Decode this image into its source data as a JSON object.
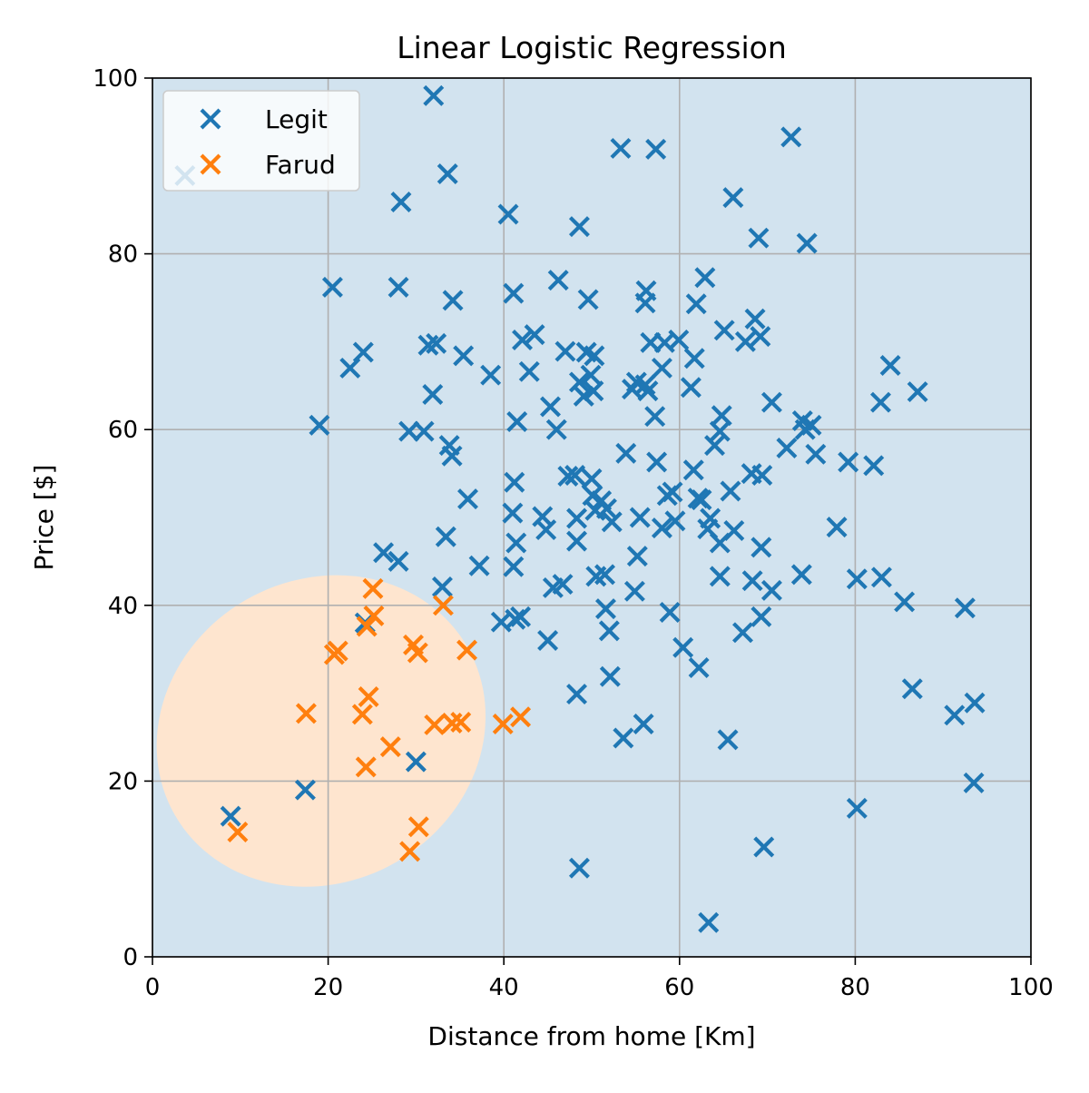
{
  "chart_data": {
    "type": "scatter",
    "title": "Linear Logistic Regression",
    "xlabel": "Distance from home [Km]",
    "ylabel": "Price [$]",
    "xlim": [
      0,
      100
    ],
    "ylim": [
      0,
      100
    ],
    "xticks": [
      "0",
      "20",
      "40",
      "60",
      "80",
      "100"
    ],
    "yticks": [
      "0",
      "20",
      "40",
      "60",
      "80",
      "100"
    ],
    "grid": true,
    "legend_position": "top-left",
    "marker": "x",
    "background_region_color": "#d2e3ef",
    "decision_region": {
      "label": "Farud",
      "shape": "ellipse",
      "color": "#fee5cf",
      "center": [
        19.2,
        25.7
      ],
      "radius_x": 19.2,
      "radius_y": 17.2,
      "rotation_deg": -30
    },
    "series": [
      {
        "name": "Legit",
        "color": "#1f77b4",
        "points": [
          [
            3.7,
            88.9
          ],
          [
            32,
            98
          ],
          [
            8.9,
            16
          ],
          [
            17.4,
            19
          ],
          [
            30,
            22.2
          ],
          [
            24.2,
            38
          ],
          [
            26.3,
            46
          ],
          [
            28,
            45
          ],
          [
            19,
            60.5
          ],
          [
            20.5,
            76.2
          ],
          [
            22.5,
            67
          ],
          [
            24,
            68.8
          ],
          [
            28,
            76.2
          ],
          [
            28.3,
            85.9
          ],
          [
            29.2,
            59.8
          ],
          [
            30.9,
            59.8
          ],
          [
            31.4,
            69.6
          ],
          [
            32.3,
            69.8
          ],
          [
            31.9,
            64
          ],
          [
            33.6,
            89.1
          ],
          [
            34.2,
            74.7
          ],
          [
            33.8,
            58.2
          ],
          [
            34.1,
            57
          ],
          [
            35.4,
            68.4
          ],
          [
            33.4,
            47.8
          ],
          [
            33,
            42.1
          ],
          [
            35.9,
            52.1
          ],
          [
            37.2,
            44.5
          ],
          [
            38.5,
            66.2
          ],
          [
            39.7,
            38.1
          ],
          [
            40.5,
            84.5
          ],
          [
            41.1,
            75.5
          ],
          [
            41.5,
            60.9
          ],
          [
            41.2,
            54
          ],
          [
            41,
            50.5
          ],
          [
            41.4,
            47.1
          ],
          [
            41.1,
            44.4
          ],
          [
            41.3,
            38.4
          ],
          [
            41.9,
            38.7
          ],
          [
            42.1,
            70.2
          ],
          [
            42.9,
            66.6
          ],
          [
            43.5,
            70.8
          ],
          [
            44.4,
            50.1
          ],
          [
            44.8,
            48.6
          ],
          [
            45.3,
            62.6
          ],
          [
            46,
            60
          ],
          [
            45.6,
            42
          ],
          [
            46.7,
            42.4
          ],
          [
            45,
            36
          ],
          [
            46.2,
            77
          ],
          [
            47,
            68.9
          ],
          [
            47.3,
            54.7
          ],
          [
            48.1,
            54.8
          ],
          [
            48.3,
            49.9
          ],
          [
            48.3,
            47.3
          ],
          [
            48.6,
            65.4
          ],
          [
            48.6,
            83.1
          ],
          [
            49.1,
            63.8
          ],
          [
            49.4,
            68.8
          ],
          [
            49.6,
            74.8
          ],
          [
            49.9,
            66.2
          ],
          [
            50.2,
            64.4
          ],
          [
            50.3,
            68.4
          ],
          [
            50,
            54.4
          ],
          [
            50.1,
            52.5
          ],
          [
            50.4,
            50.8
          ],
          [
            51.1,
            51.9
          ],
          [
            51.7,
            51
          ],
          [
            52.3,
            49.5
          ],
          [
            50.5,
            43.3
          ],
          [
            51.5,
            43.5
          ],
          [
            51.6,
            39.6
          ],
          [
            52,
            37.1
          ],
          [
            52.1,
            31.9
          ],
          [
            48.3,
            29.9
          ],
          [
            48.6,
            10.1
          ],
          [
            53.3,
            92
          ],
          [
            53.9,
            57.3
          ],
          [
            54.6,
            64.6
          ],
          [
            55.1,
            65.4
          ],
          [
            55.5,
            50
          ],
          [
            55.2,
            45.6
          ],
          [
            54.9,
            41.6
          ],
          [
            53.6,
            24.9
          ],
          [
            55.9,
            26.5
          ],
          [
            56.1,
            74.4
          ],
          [
            56.2,
            75.8
          ],
          [
            56.1,
            65.1
          ],
          [
            56.4,
            64.4
          ],
          [
            56.7,
            69.9
          ],
          [
            57.3,
            91.9
          ],
          [
            57.2,
            61.5
          ],
          [
            57.4,
            56.3
          ],
          [
            58,
            67
          ],
          [
            58.3,
            69.9
          ],
          [
            58,
            48.8
          ],
          [
            58.6,
            52.5
          ],
          [
            59.2,
            52.9
          ],
          [
            58.9,
            39.2
          ],
          [
            59.5,
            49.6
          ],
          [
            59.9,
            70.2
          ],
          [
            60.4,
            35.2
          ],
          [
            61.6,
            55.4
          ],
          [
            61.3,
            64.8
          ],
          [
            61.7,
            68.1
          ],
          [
            61.9,
            74.3
          ],
          [
            62.1,
            52.2
          ],
          [
            62.5,
            52
          ],
          [
            62.2,
            32.9
          ],
          [
            62.9,
            77.3
          ],
          [
            63.2,
            48.7
          ],
          [
            63.5,
            49.9
          ],
          [
            63.3,
            3.9
          ],
          [
            64,
            58.2
          ],
          [
            64.6,
            59.8
          ],
          [
            64.8,
            61.6
          ],
          [
            64.6,
            47.1
          ],
          [
            64.6,
            43.3
          ],
          [
            65.1,
            71.3
          ],
          [
            65.8,
            53
          ],
          [
            65.5,
            24.7
          ],
          [
            66.1,
            86.4
          ],
          [
            66.2,
            48.5
          ],
          [
            67.2,
            36.9
          ],
          [
            67.5,
            70
          ],
          [
            68.2,
            55
          ],
          [
            68.3,
            42.8
          ],
          [
            68.6,
            72.6
          ],
          [
            69,
            81.8
          ],
          [
            69.2,
            70.6
          ],
          [
            69.4,
            54.8
          ],
          [
            69.3,
            46.6
          ],
          [
            69.3,
            38.7
          ],
          [
            69.6,
            12.5
          ],
          [
            70.5,
            63.1
          ],
          [
            70.5,
            41.7
          ],
          [
            72.2,
            57.9
          ],
          [
            72.7,
            93.3
          ],
          [
            73.9,
            43.5
          ],
          [
            74,
            61
          ],
          [
            74.3,
            60
          ],
          [
            74.5,
            81.2
          ],
          [
            75,
            60.5
          ],
          [
            75.5,
            57.2
          ],
          [
            77.9,
            48.9
          ],
          [
            79.2,
            56.3
          ],
          [
            80.2,
            43
          ],
          [
            80.2,
            16.9
          ],
          [
            82.1,
            55.9
          ],
          [
            82.9,
            63.1
          ],
          [
            83,
            43.2
          ],
          [
            84,
            67.3
          ],
          [
            85.6,
            40.4
          ],
          [
            86.5,
            30.5
          ],
          [
            87.1,
            64.3
          ],
          [
            91.3,
            27.5
          ],
          [
            92.5,
            39.7
          ],
          [
            93.6,
            28.9
          ],
          [
            93.5,
            19.8
          ]
        ]
      },
      {
        "name": "Farud",
        "color": "#ff7f0e",
        "points": [
          [
            9.7,
            14.2
          ],
          [
            17.5,
            27.7
          ],
          [
            20.7,
            34.4
          ],
          [
            21.1,
            34.8
          ],
          [
            23.9,
            27.6
          ],
          [
            24.4,
            37.6
          ],
          [
            24.6,
            29.6
          ],
          [
            24.3,
            21.6
          ],
          [
            25.1,
            41.9
          ],
          [
            25.2,
            38.8
          ],
          [
            27.1,
            23.9
          ],
          [
            29.3,
            12
          ],
          [
            29.7,
            35.5
          ],
          [
            30.2,
            34.6
          ],
          [
            30.3,
            14.8
          ],
          [
            32.1,
            26.4
          ],
          [
            33.1,
            40
          ],
          [
            34.1,
            26.6
          ],
          [
            35.1,
            26.7
          ],
          [
            35.8,
            34.9
          ],
          [
            39.9,
            26.5
          ],
          [
            41.9,
            27.3
          ]
        ]
      }
    ]
  }
}
